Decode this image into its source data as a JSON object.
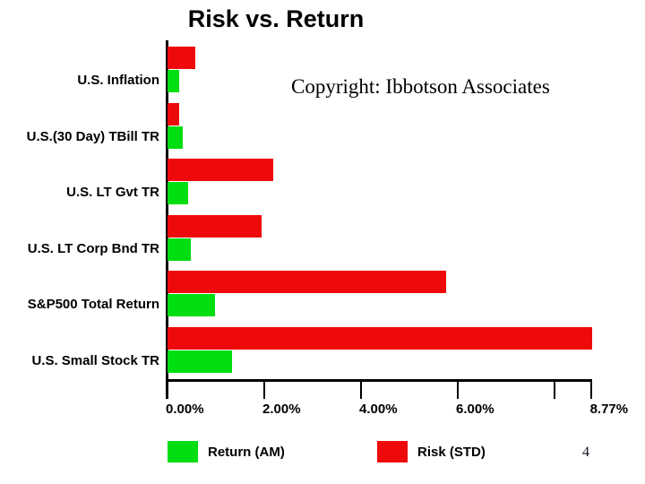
{
  "slide": {
    "title": "Risk vs. Return",
    "copyright": "Copyright: Ibbotson Associates",
    "page_number": "4"
  },
  "chart_data": {
    "type": "bar",
    "orientation": "horizontal",
    "title": "Risk vs. Return",
    "xlabel": "",
    "ylabel": "",
    "grid": false,
    "xlim": [
      0,
      8.77
    ],
    "categories": [
      "U.S. Inflation",
      "U.S.(30 Day) TBill TR",
      "U.S. LT Gvt TR",
      "U.S. LT Corp Bnd TR",
      "S&P500 Total Return",
      "U.S. Small Stock TR"
    ],
    "series": [
      {
        "name": "Risk (STD)",
        "color": "#ee0a0a",
        "values": [
          0.57,
          0.24,
          2.19,
          1.95,
          5.76,
          8.77
        ]
      },
      {
        "name": "Return (AM)",
        "color": "#00dd11",
        "values": [
          0.24,
          0.31,
          0.43,
          0.48,
          0.98,
          1.33
        ]
      }
    ],
    "x_ticks": [
      {
        "label": "0.00%",
        "value": 0
      },
      {
        "label": "2.00%",
        "value": 2
      },
      {
        "label": "4.00%",
        "value": 4
      },
      {
        "label": "6.00%",
        "value": 6
      },
      {
        "label": "",
        "value": 8
      },
      {
        "label": "8.77%",
        "value": 8.77
      }
    ],
    "legend_position": "bottom",
    "legend": [
      {
        "label": "Return (AM)",
        "color": "#00dd11"
      },
      {
        "label": "Risk (STD)",
        "color": "#ee0a0a"
      }
    ]
  }
}
